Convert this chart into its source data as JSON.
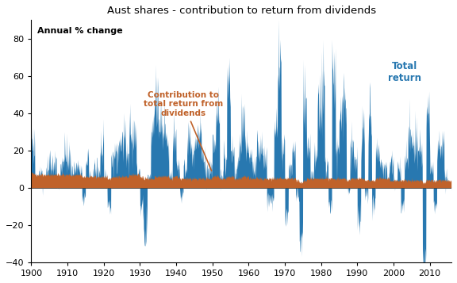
{
  "title": "Aust shares - contribution to return from dividends",
  "ylabel_text": "Annual % change",
  "total_return_color": "#2878b0",
  "dividend_color": "#c0622a",
  "annotation_text_dividend": "Contribution to\ntotal return from\ndividends",
  "annotation_text_total": "Total\nreturn",
  "annotation_color_dividend": "#c0622a",
  "annotation_color_total": "#2878b0",
  "ylim": [
    -40,
    90
  ],
  "yticks": [
    -40,
    -20,
    0,
    20,
    40,
    60,
    80
  ],
  "xticks": [
    1900,
    1910,
    1920,
    1930,
    1940,
    1950,
    1960,
    1970,
    1980,
    1990,
    2000,
    2010
  ],
  "xlim": [
    1900,
    2016
  ]
}
